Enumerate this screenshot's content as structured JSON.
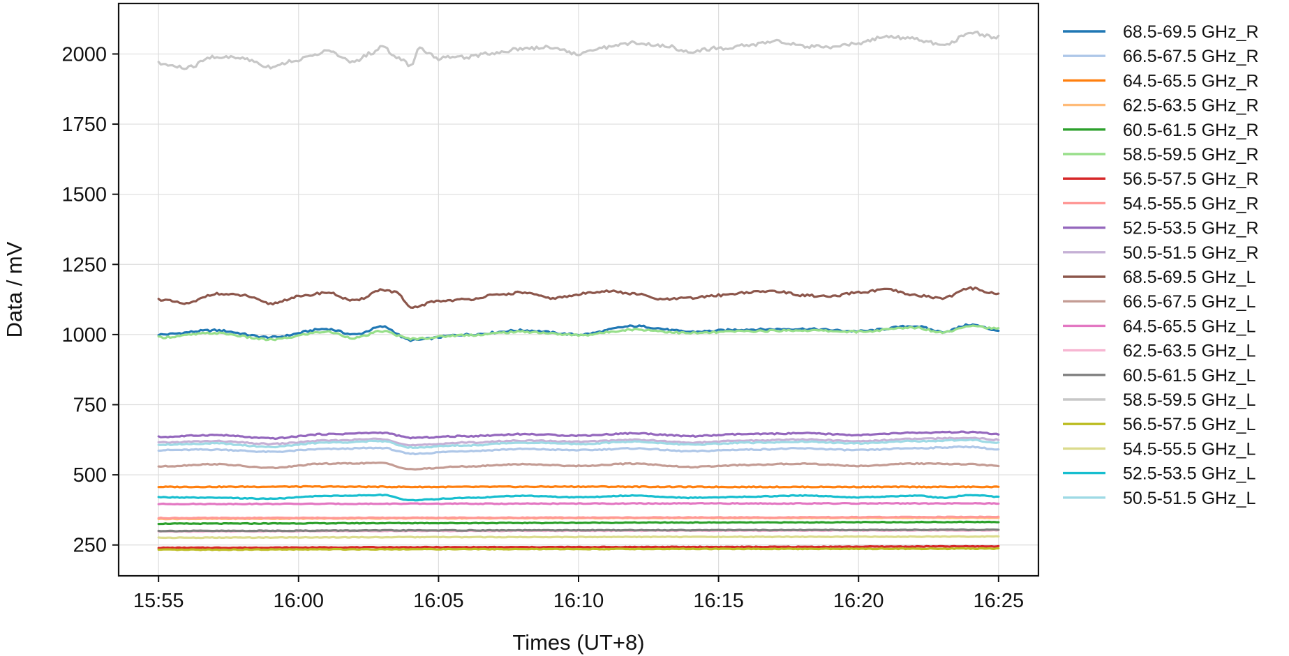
{
  "chart_data": {
    "type": "line",
    "title": "",
    "xlabel": "Times (UT+8)",
    "ylabel": "Data / mV",
    "x_range": [
      "15:55",
      "16:25"
    ],
    "x_ticks": [
      "15:55",
      "16:00",
      "16:05",
      "16:10",
      "16:15",
      "16:20",
      "16:25"
    ],
    "ylim": [
      140,
      2180
    ],
    "y_ticks": [
      250,
      500,
      750,
      1000,
      1250,
      1500,
      1750,
      2000
    ],
    "grid": true,
    "legend_position": "outside-right",
    "series": [
      {
        "name": "68.5-69.5 GHz_R",
        "color": "#1f77b4",
        "level": 1005,
        "points": [
          [
            "15:55",
            1000
          ],
          [
            "15:57",
            1015
          ],
          [
            "15:59",
            990
          ],
          [
            "16:01",
            1020
          ],
          [
            "16:02",
            1000
          ],
          [
            "16:03",
            1028
          ],
          [
            "16:04",
            980
          ],
          [
            "16:06",
            1000
          ],
          [
            "16:08",
            1015
          ],
          [
            "16:10",
            1000
          ],
          [
            "16:12",
            1030
          ],
          [
            "16:14",
            1010
          ],
          [
            "16:16",
            1018
          ],
          [
            "16:18",
            1020
          ],
          [
            "16:20",
            1012
          ],
          [
            "16:22",
            1030
          ],
          [
            "16:23",
            1010
          ],
          [
            "16:24",
            1035
          ],
          [
            "16:25",
            1015
          ]
        ]
      },
      {
        "name": "66.5-67.5 GHz_R",
        "color": "#aec7e8",
        "level": 588,
        "points": [
          [
            "15:55",
            588
          ],
          [
            "15:57",
            590
          ],
          [
            "15:59",
            582
          ],
          [
            "16:01",
            592
          ],
          [
            "16:03",
            596
          ],
          [
            "16:04",
            575
          ],
          [
            "16:06",
            585
          ],
          [
            "16:08",
            592
          ],
          [
            "16:10",
            588
          ],
          [
            "16:12",
            594
          ],
          [
            "16:14",
            584
          ],
          [
            "16:16",
            590
          ],
          [
            "16:18",
            594
          ],
          [
            "16:20",
            588
          ],
          [
            "16:22",
            595
          ],
          [
            "16:24",
            600
          ],
          [
            "16:25",
            590
          ]
        ]
      },
      {
        "name": "64.5-65.5 GHz_R",
        "color": "#ff7f0e",
        "level": 457,
        "points": [
          [
            "15:55",
            457
          ],
          [
            "16:00",
            458
          ],
          [
            "16:05",
            457
          ],
          [
            "16:10",
            458
          ],
          [
            "16:15",
            457
          ],
          [
            "16:20",
            457
          ],
          [
            "16:25",
            457
          ]
        ]
      },
      {
        "name": "62.5-63.5 GHz_R",
        "color": "#ffbb78",
        "level": 345,
        "points": [
          [
            "15:55",
            343
          ],
          [
            "16:05",
            345
          ],
          [
            "16:15",
            346
          ],
          [
            "16:25",
            347
          ]
        ]
      },
      {
        "name": "60.5-61.5 GHz_R",
        "color": "#2ca02c",
        "level": 328,
        "points": [
          [
            "15:55",
            326
          ],
          [
            "16:05",
            328
          ],
          [
            "16:15",
            330
          ],
          [
            "16:25",
            332
          ]
        ]
      },
      {
        "name": "58.5-59.5 GHz_R",
        "color": "#98df8a",
        "level": 1000,
        "points": [
          [
            "15:55",
            990
          ],
          [
            "15:57",
            1005
          ],
          [
            "15:59",
            982
          ],
          [
            "16:01",
            1010
          ],
          [
            "16:02",
            988
          ],
          [
            "16:03",
            1012
          ],
          [
            "16:04",
            985
          ],
          [
            "16:06",
            998
          ],
          [
            "16:08",
            1010
          ],
          [
            "16:10",
            998
          ],
          [
            "16:12",
            1018
          ],
          [
            "16:14",
            1005
          ],
          [
            "16:16",
            1012
          ],
          [
            "16:18",
            1015
          ],
          [
            "16:20",
            1010
          ],
          [
            "16:22",
            1025
          ],
          [
            "16:23",
            1008
          ],
          [
            "16:24",
            1032
          ],
          [
            "16:25",
            1020
          ]
        ]
      },
      {
        "name": "56.5-57.5 GHz_R",
        "color": "#d62728",
        "level": 242,
        "points": [
          [
            "15:55",
            240
          ],
          [
            "16:05",
            242
          ],
          [
            "16:15",
            243
          ],
          [
            "16:25",
            245
          ]
        ]
      },
      {
        "name": "54.5-55.5 GHz_R",
        "color": "#ff9896",
        "level": 347,
        "points": [
          [
            "15:55",
            346
          ],
          [
            "16:05",
            347
          ],
          [
            "16:15",
            348
          ],
          [
            "16:25",
            350
          ]
        ]
      },
      {
        "name": "52.5-53.5 GHz_R",
        "color": "#9467bd",
        "level": 640,
        "points": [
          [
            "15:55",
            635
          ],
          [
            "15:57",
            642
          ],
          [
            "15:59",
            630
          ],
          [
            "16:01",
            645
          ],
          [
            "16:03",
            650
          ],
          [
            "16:04",
            632
          ],
          [
            "16:06",
            638
          ],
          [
            "16:08",
            645
          ],
          [
            "16:10",
            640
          ],
          [
            "16:12",
            648
          ],
          [
            "16:14",
            638
          ],
          [
            "16:16",
            645
          ],
          [
            "16:18",
            648
          ],
          [
            "16:20",
            642
          ],
          [
            "16:22",
            650
          ],
          [
            "16:24",
            652
          ],
          [
            "16:25",
            645
          ]
        ]
      },
      {
        "name": "50.5-51.5 GHz_R",
        "color": "#c5b0d5",
        "level": 620,
        "points": [
          [
            "15:55",
            615
          ],
          [
            "15:57",
            620
          ],
          [
            "15:59",
            610
          ],
          [
            "16:01",
            622
          ],
          [
            "16:03",
            628
          ],
          [
            "16:04",
            605
          ],
          [
            "16:06",
            615
          ],
          [
            "16:08",
            622
          ],
          [
            "16:10",
            618
          ],
          [
            "16:12",
            625
          ],
          [
            "16:14",
            615
          ],
          [
            "16:16",
            622
          ],
          [
            "16:18",
            626
          ],
          [
            "16:20",
            620
          ],
          [
            "16:22",
            628
          ],
          [
            "16:24",
            632
          ],
          [
            "16:25",
            625
          ]
        ]
      },
      {
        "name": "68.5-69.5 GHz_L",
        "color": "#8c564b",
        "level": 1130,
        "points": [
          [
            "15:55",
            1125
          ],
          [
            "15:56",
            1110
          ],
          [
            "15:57",
            1145
          ],
          [
            "15:58",
            1140
          ],
          [
            "15:59",
            1110
          ],
          [
            "16:00",
            1135
          ],
          [
            "16:01",
            1150
          ],
          [
            "16:02",
            1120
          ],
          [
            "16:03",
            1160
          ],
          [
            "16:03.5",
            1150
          ],
          [
            "16:04",
            1095
          ],
          [
            "16:05",
            1120
          ],
          [
            "16:06",
            1125
          ],
          [
            "16:07",
            1140
          ],
          [
            "16:08",
            1150
          ],
          [
            "16:09",
            1130
          ],
          [
            "16:11",
            1155
          ],
          [
            "16:12",
            1145
          ],
          [
            "16:13",
            1125
          ],
          [
            "16:14",
            1130
          ],
          [
            "16:15",
            1140
          ],
          [
            "16:16",
            1150
          ],
          [
            "16:17",
            1155
          ],
          [
            "16:18",
            1140
          ],
          [
            "16:19",
            1135
          ],
          [
            "16:20",
            1150
          ],
          [
            "16:21",
            1160
          ],
          [
            "16:22",
            1140
          ],
          [
            "16:23",
            1130
          ],
          [
            "16:24",
            1165
          ],
          [
            "16:25",
            1145
          ]
        ]
      },
      {
        "name": "66.5-67.5 GHz_L",
        "color": "#c49c94",
        "level": 530,
        "points": [
          [
            "15:55",
            530
          ],
          [
            "15:57",
            538
          ],
          [
            "15:59",
            525
          ],
          [
            "16:01",
            540
          ],
          [
            "16:03",
            542
          ],
          [
            "16:04",
            520
          ],
          [
            "16:06",
            530
          ],
          [
            "16:08",
            538
          ],
          [
            "16:10",
            532
          ],
          [
            "16:12",
            540
          ],
          [
            "16:14",
            528
          ],
          [
            "16:16",
            535
          ],
          [
            "16:18",
            540
          ],
          [
            "16:20",
            532
          ],
          [
            "16:22",
            540
          ],
          [
            "16:24",
            538
          ],
          [
            "16:25",
            532
          ]
        ]
      },
      {
        "name": "64.5-65.5 GHz_L",
        "color": "#e377c2",
        "level": 397,
        "points": [
          [
            "15:55",
            396
          ],
          [
            "16:05",
            397
          ],
          [
            "16:15",
            398
          ],
          [
            "16:25",
            398
          ]
        ]
      },
      {
        "name": "62.5-63.5 GHz_L",
        "color": "#f7b6d2",
        "level": 300,
        "points": [
          [
            "15:55",
            298
          ],
          [
            "16:05",
            300
          ],
          [
            "16:15",
            301
          ],
          [
            "16:25",
            302
          ]
        ]
      },
      {
        "name": "60.5-61.5 GHz_L",
        "color": "#7f7f7f",
        "level": 302,
        "points": [
          [
            "15:55",
            300
          ],
          [
            "16:05",
            302
          ],
          [
            "16:15",
            303
          ],
          [
            "16:25",
            304
          ]
        ]
      },
      {
        "name": "58.5-59.5 GHz_L",
        "color": "#c7c7c7",
        "level": 2010,
        "points": [
          [
            "15:55",
            1965
          ],
          [
            "15:56",
            1950
          ],
          [
            "15:57",
            1990
          ],
          [
            "15:58",
            1985
          ],
          [
            "15:59",
            1955
          ],
          [
            "16:00",
            1980
          ],
          [
            "16:01",
            2010
          ],
          [
            "16:02",
            1970
          ],
          [
            "16:02.5",
            2000
          ],
          [
            "16:03",
            2025
          ],
          [
            "16:03.5",
            1990
          ],
          [
            "16:04",
            1960
          ],
          [
            "16:04.3",
            2020
          ],
          [
            "16:05",
            1985
          ],
          [
            "16:06",
            1990
          ],
          [
            "16:07",
            2005
          ],
          [
            "16:08",
            2020
          ],
          [
            "16:09",
            2025
          ],
          [
            "16:10",
            2000
          ],
          [
            "16:11",
            2025
          ],
          [
            "16:12",
            2040
          ],
          [
            "16:13",
            2030
          ],
          [
            "16:14",
            2010
          ],
          [
            "16:15",
            2020
          ],
          [
            "16:16",
            2030
          ],
          [
            "16:17",
            2045
          ],
          [
            "16:18",
            2030
          ],
          [
            "16:19",
            2020
          ],
          [
            "16:20",
            2040
          ],
          [
            "16:21",
            2060
          ],
          [
            "16:22",
            2055
          ],
          [
            "16:23",
            2030
          ],
          [
            "16:24",
            2075
          ],
          [
            "16:25",
            2060
          ]
        ]
      },
      {
        "name": "56.5-57.5 GHz_L",
        "color": "#bcbd22",
        "level": 235,
        "points": [
          [
            "15:55",
            233
          ],
          [
            "16:05",
            235
          ],
          [
            "16:15",
            236
          ],
          [
            "16:25",
            237
          ]
        ]
      },
      {
        "name": "54.5-55.5 GHz_L",
        "color": "#dbdb8d",
        "level": 278,
        "points": [
          [
            "15:55",
            276
          ],
          [
            "16:05",
            278
          ],
          [
            "16:15",
            279
          ],
          [
            "16:25",
            280
          ]
        ]
      },
      {
        "name": "52.5-53.5 GHz_L",
        "color": "#17becf",
        "level": 420,
        "points": [
          [
            "15:55",
            420
          ],
          [
            "15:57",
            418
          ],
          [
            "15:59",
            415
          ],
          [
            "16:01",
            425
          ],
          [
            "16:03",
            428
          ],
          [
            "16:04",
            410
          ],
          [
            "16:06",
            418
          ],
          [
            "16:08",
            425
          ],
          [
            "16:10",
            420
          ],
          [
            "16:12",
            426
          ],
          [
            "16:14",
            418
          ],
          [
            "16:16",
            422
          ],
          [
            "16:18",
            426
          ],
          [
            "16:20",
            420
          ],
          [
            "16:22",
            426
          ],
          [
            "16:23",
            418
          ],
          [
            "16:24",
            428
          ],
          [
            "16:25",
            422
          ]
        ]
      },
      {
        "name": "50.5-51.5 GHz_L",
        "color": "#9edae5",
        "level": 610,
        "points": [
          [
            "15:55",
            608
          ],
          [
            "15:57",
            612
          ],
          [
            "15:59",
            600
          ],
          [
            "16:01",
            615
          ],
          [
            "16:03",
            620
          ],
          [
            "16:04",
            598
          ],
          [
            "16:06",
            605
          ],
          [
            "16:08",
            615
          ],
          [
            "16:10",
            610
          ],
          [
            "16:12",
            618
          ],
          [
            "16:14",
            608
          ],
          [
            "16:16",
            614
          ],
          [
            "16:18",
            618
          ],
          [
            "16:20",
            612
          ],
          [
            "16:22",
            620
          ],
          [
            "16:24",
            624
          ],
          [
            "16:25",
            615
          ]
        ]
      }
    ]
  }
}
